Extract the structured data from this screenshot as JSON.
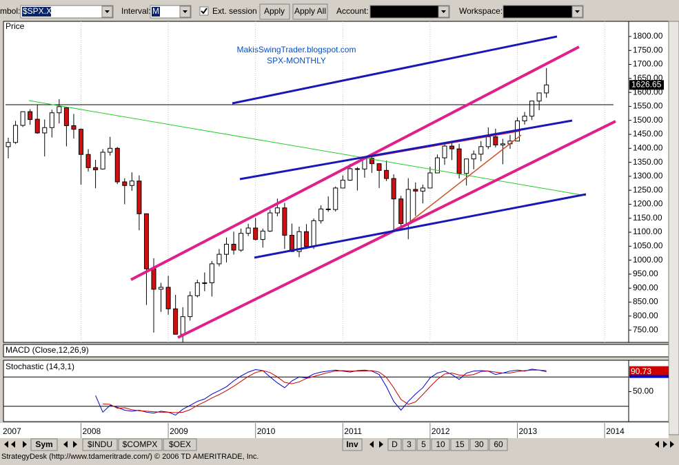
{
  "toolbar": {
    "symbol_label": "mbol:",
    "symbol": "$SPX.X",
    "interval_label": "Interval:",
    "interval": "M",
    "ext_session": "Ext. session",
    "apply": "Apply",
    "apply_all": "Apply All",
    "account_label": "Account:",
    "workspace_label": "Workspace:"
  },
  "price_panel": {
    "label": "Price",
    "watermark": [
      "MakisSwingTrader.blogspot.com",
      "SPX-MONTHLY"
    ],
    "ylim": [
      706,
      1854
    ],
    "yticks": [
      {
        "value": 750,
        "label": "750.00"
      },
      {
        "value": 800,
        "label": "800.00"
      },
      {
        "value": 850,
        "label": "850.00"
      },
      {
        "value": 900,
        "label": "900.00"
      },
      {
        "value": 950,
        "label": "950.00"
      },
      {
        "value": 1000,
        "label": "1000.00"
      },
      {
        "value": 1050,
        "label": "1050.00"
      },
      {
        "value": 1100,
        "label": "1100.00"
      },
      {
        "value": 1150,
        "label": "1150.00"
      },
      {
        "value": 1200,
        "label": "1200.00"
      },
      {
        "value": 1250,
        "label": "1250.00"
      },
      {
        "value": 1300,
        "label": "1300.00"
      },
      {
        "value": 1350,
        "label": "1350.00"
      },
      {
        "value": 1400,
        "label": "1400.00"
      },
      {
        "value": 1450,
        "label": "1450.00"
      },
      {
        "value": 1500,
        "label": "1500.00"
      },
      {
        "value": 1550,
        "label": "1550.00"
      },
      {
        "value": 1600,
        "label": "1600.00"
      },
      {
        "value": 1650,
        "label": "1650.00"
      },
      {
        "value": 1700,
        "label": "1700.00"
      },
      {
        "value": 1750,
        "label": "1750.00"
      },
      {
        "value": 1800,
        "label": "1800.00"
      }
    ],
    "last_price": 1626.65,
    "up_color": "#ffffff",
    "down_color": "#d01010",
    "candles": [
      [
        1406,
        1438,
        1364,
        1421
      ],
      [
        1421,
        1498,
        1416,
        1482
      ],
      [
        1482,
        1532,
        1476,
        1531
      ],
      [
        1531,
        1540,
        1484,
        1503
      ],
      [
        1504,
        1556,
        1452,
        1455
      ],
      [
        1455,
        1503,
        1371,
        1474
      ],
      [
        1474,
        1538,
        1439,
        1527
      ],
      [
        1527,
        1576,
        1489,
        1549
      ],
      [
        1545,
        1545,
        1407,
        1481
      ],
      [
        1481,
        1523,
        1435,
        1468
      ],
      [
        1468,
        1471,
        1270,
        1378
      ],
      [
        1378,
        1397,
        1317,
        1331
      ],
      [
        1331,
        1359,
        1257,
        1323
      ],
      [
        1326,
        1397,
        1324,
        1386
      ],
      [
        1386,
        1441,
        1374,
        1400
      ],
      [
        1400,
        1405,
        1272,
        1280
      ],
      [
        1280,
        1293,
        1200,
        1267
      ],
      [
        1267,
        1314,
        1248,
        1283
      ],
      [
        1283,
        1303,
        1107,
        1166
      ],
      [
        1166,
        1167,
        840,
        969
      ],
      [
        969,
        1007,
        741,
        896
      ],
      [
        896,
        919,
        815,
        903
      ],
      [
        903,
        944,
        805,
        826
      ],
      [
        826,
        876,
        735,
        735
      ],
      [
        735,
        832,
        667,
        798
      ],
      [
        798,
        888,
        784,
        873
      ],
      [
        873,
        930,
        867,
        919
      ],
      [
        919,
        956,
        889,
        919
      ],
      [
        919,
        997,
        870,
        987
      ],
      [
        987,
        1040,
        978,
        1021
      ],
      [
        1021,
        1081,
        992,
        1057
      ],
      [
        1057,
        1102,
        1020,
        1036
      ],
      [
        1036,
        1113,
        1030,
        1096
      ],
      [
        1096,
        1130,
        1086,
        1115
      ],
      [
        1115,
        1151,
        1071,
        1074
      ],
      [
        1074,
        1113,
        1045,
        1104
      ],
      [
        1104,
        1181,
        1101,
        1169
      ],
      [
        1169,
        1220,
        1157,
        1187
      ],
      [
        1187,
        1205,
        1040,
        1089
      ],
      [
        1089,
        1131,
        1029,
        1031
      ],
      [
        1031,
        1120,
        1011,
        1102
      ],
      [
        1102,
        1129,
        1040,
        1049
      ],
      [
        1049,
        1149,
        1040,
        1141
      ],
      [
        1141,
        1196,
        1131,
        1183
      ],
      [
        1183,
        1228,
        1173,
        1181
      ],
      [
        1181,
        1263,
        1174,
        1258
      ],
      [
        1258,
        1303,
        1257,
        1286
      ],
      [
        1286,
        1344,
        1284,
        1327
      ],
      [
        1327,
        1333,
        1249,
        1326
      ],
      [
        1326,
        1364,
        1295,
        1364
      ],
      [
        1364,
        1371,
        1312,
        1345
      ],
      [
        1345,
        1346,
        1258,
        1321
      ],
      [
        1321,
        1356,
        1283,
        1292
      ],
      [
        1292,
        1307,
        1101,
        1219
      ],
      [
        1219,
        1230,
        1114,
        1131
      ],
      [
        1131,
        1293,
        1075,
        1253
      ],
      [
        1253,
        1278,
        1158,
        1247
      ],
      [
        1247,
        1270,
        1203,
        1258
      ],
      [
        1258,
        1334,
        1258,
        1312
      ],
      [
        1312,
        1378,
        1312,
        1366
      ],
      [
        1366,
        1420,
        1341,
        1408
      ],
      [
        1408,
        1422,
        1358,
        1398
      ],
      [
        1398,
        1416,
        1292,
        1310
      ],
      [
        1310,
        1363,
        1267,
        1362
      ],
      [
        1362,
        1392,
        1325,
        1379
      ],
      [
        1379,
        1426,
        1354,
        1406
      ],
      [
        1406,
        1475,
        1397,
        1441
      ],
      [
        1441,
        1470,
        1403,
        1412
      ],
      [
        1412,
        1434,
        1343,
        1416
      ],
      [
        1416,
        1448,
        1398,
        1426
      ],
      [
        1426,
        1510,
        1426,
        1498
      ],
      [
        1498,
        1530,
        1485,
        1515
      ],
      [
        1515,
        1570,
        1501,
        1569
      ],
      [
        1569,
        1598,
        1536,
        1598
      ],
      [
        1598,
        1687,
        1581,
        1626.65
      ]
    ]
  },
  "macd_panel": {
    "label": "MACD (Close,12,26,9)"
  },
  "stochastic_panel": {
    "label": "Stochastic (14,3,1)",
    "ylim": [
      0,
      100
    ],
    "yticks": [
      {
        "value": 50,
        "label": "50.00"
      }
    ],
    "levels": [
      80,
      20
    ],
    "series": [
      {
        "color": "#0000cc",
        "values": [
          null,
          null,
          null,
          null,
          null,
          null,
          null,
          null,
          null,
          null,
          null,
          null,
          42,
          8,
          22,
          18,
          12,
          10,
          12,
          8,
          6,
          10,
          8,
          2,
          14,
          22,
          30,
          35,
          45,
          52,
          60,
          72,
          82,
          90,
          95,
          93,
          80,
          68,
          58,
          72,
          80,
          78,
          86,
          90,
          92,
          94,
          92,
          90,
          93,
          94,
          92,
          85,
          60,
          30,
          12,
          30,
          45,
          58,
          78,
          88,
          92,
          85,
          75,
          88,
          92,
          93,
          92,
          85,
          88,
          92,
          94,
          92,
          96,
          94,
          90.73
        ]
      },
      {
        "color": "#cc0000",
        "values": [
          null,
          null,
          null,
          null,
          null,
          null,
          null,
          null,
          null,
          null,
          null,
          null,
          null,
          25,
          24,
          16,
          17,
          13,
          11,
          10,
          9,
          8,
          8,
          7,
          8,
          13,
          22,
          29,
          37,
          44,
          52,
          61,
          71,
          81,
          89,
          93,
          89,
          80,
          69,
          66,
          70,
          77,
          81,
          85,
          89,
          92,
          93,
          92,
          92,
          92,
          93,
          90,
          79,
          58,
          34,
          24,
          29,
          44,
          60,
          75,
          86,
          88,
          84,
          83,
          85,
          91,
          92,
          90,
          88,
          88,
          91,
          93,
          94,
          94,
          93
        ]
      }
    ]
  },
  "x_labels": [
    "2007",
    "2008",
    "2009",
    "2010",
    "2011",
    "2012",
    "2013",
    "2014"
  ],
  "tabs": {
    "sym": "Sym",
    "symbols": [
      "$INDU",
      "$COMPX",
      "$OEX"
    ],
    "inv": "Inv",
    "periods": [
      "D",
      "3",
      "5",
      "10",
      "15",
      "30",
      "60"
    ]
  },
  "status": "StrategyDesk (http://www.tdameritrade.com/) © 2006 TD AMERITRADE, Inc."
}
